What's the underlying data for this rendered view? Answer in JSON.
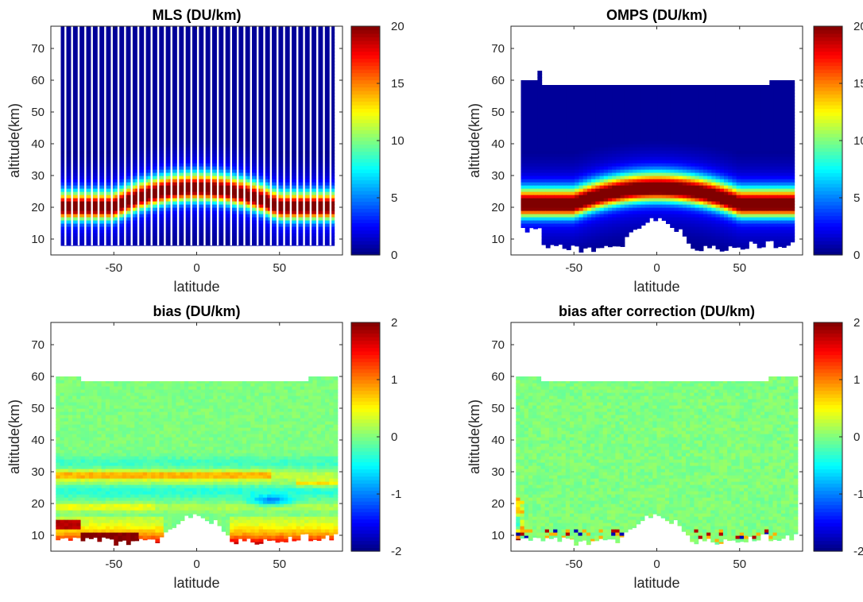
{
  "figure": {
    "colormap": "jet",
    "background": "#ffffff"
  },
  "chart_data": [
    {
      "type": "heatmap",
      "title": "MLS (DU/km)",
      "xlabel": "latitude",
      "ylabel": "altitude(km)",
      "xticks": [
        -50,
        0,
        50
      ],
      "yticks": [
        10,
        20,
        30,
        40,
        50,
        60,
        70
      ],
      "xlim": [
        -88,
        88
      ],
      "ylim": [
        5,
        77
      ],
      "colorbar": {
        "min": 0,
        "max": 20,
        "ticks": [
          0,
          5,
          10,
          15,
          20
        ]
      },
      "field": "profile",
      "lat_range": [
        -82,
        82
      ],
      "alt_range": [
        8,
        77
      ],
      "striped": true,
      "layer": {
        "peak_value": 19,
        "peak_altitude_tropics": 26,
        "peak_altitude_highlat": 20
      }
    },
    {
      "type": "heatmap",
      "title": "OMPS (DU/km)",
      "xlabel": "latitude",
      "ylabel": "altitude(km)",
      "xticks": [
        -50,
        0,
        50
      ],
      "yticks": [
        10,
        20,
        30,
        40,
        50,
        60,
        70
      ],
      "xlim": [
        -88,
        88
      ],
      "ylim": [
        5,
        77
      ],
      "colorbar": {
        "min": 0,
        "max": 20,
        "ticks": [
          0,
          5,
          10,
          15,
          20
        ]
      },
      "field": "profile",
      "lat_range": [
        -82,
        82
      ],
      "alt_top": 60,
      "alt_bottom_highlat": 7,
      "alt_bottom_tropics": 16,
      "layer": {
        "peak_value": 20,
        "peak_altitude_tropics": 26,
        "peak_altitude_highlat": 21
      }
    },
    {
      "type": "heatmap",
      "title": "bias (DU/km)",
      "xlabel": "latitude",
      "ylabel": "altitude(km)",
      "xticks": [
        -50,
        0,
        50
      ],
      "yticks": [
        10,
        20,
        30,
        40,
        50,
        60,
        70
      ],
      "xlim": [
        -88,
        88
      ],
      "ylim": [
        5,
        77
      ],
      "colorbar": {
        "min": -2,
        "max": 2,
        "ticks": [
          -2,
          -1,
          0,
          1,
          2
        ]
      },
      "field": "bias",
      "lat_range": [
        -85,
        85
      ],
      "alt_top": 60,
      "alt_bottom_highlat": 8,
      "alt_bottom_tropics": 16
    },
    {
      "type": "heatmap",
      "title": "bias after correction (DU/km)",
      "xlabel": "latitude",
      "ylabel": "altitude(km)",
      "xticks": [
        -50,
        0,
        50
      ],
      "yticks": [
        10,
        20,
        30,
        40,
        50,
        60,
        70
      ],
      "xlim": [
        -88,
        88
      ],
      "ylim": [
        5,
        77
      ],
      "colorbar": {
        "min": -2,
        "max": 2,
        "ticks": [
          -2,
          -1,
          0,
          1,
          2
        ]
      },
      "field": "corrected",
      "lat_range": [
        -85,
        85
      ],
      "alt_top": 60,
      "alt_bottom_highlat": 8,
      "alt_bottom_tropics": 16
    }
  ]
}
